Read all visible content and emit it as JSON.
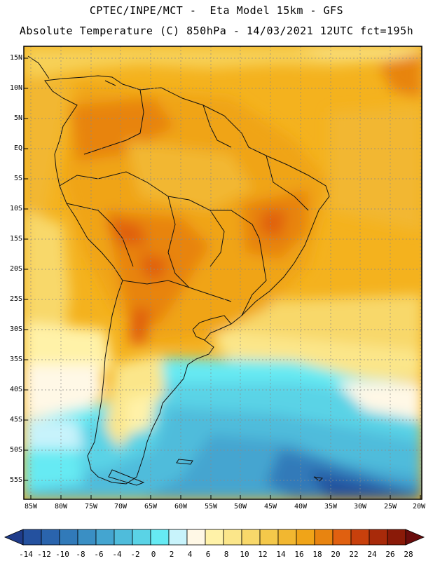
{
  "title": {
    "line1": "CPTEC/INPE/MCT -  Eta Model 15km - GFS",
    "line2": "Absolute Temperature (C) 850hPa - 14/03/2021 12UTC fct=195h"
  },
  "lat_labels": [
    "15N",
    "10N",
    "5N",
    "EQ",
    "5S",
    "10S",
    "15S",
    "20S",
    "25S",
    "30S",
    "35S",
    "40S",
    "45S",
    "50S",
    "55S"
  ],
  "lon_labels": [
    "85W",
    "80W",
    "75W",
    "70W",
    "65W",
    "60W",
    "55W",
    "50W",
    "45W",
    "40W",
    "35W",
    "30W",
    "25W",
    "20W"
  ],
  "colorbar": {
    "labels": [
      "-14",
      "-12",
      "-10",
      "-8",
      "-6",
      "-4",
      "-2",
      "0",
      "2",
      "4",
      "6",
      "8",
      "10",
      "12",
      "14",
      "16",
      "18",
      "20",
      "22",
      "24",
      "26",
      "28"
    ],
    "colors": [
      "#1f3c8a",
      "#24519f",
      "#2a64ad",
      "#317ab9",
      "#3a8fc4",
      "#44a5d0",
      "#4fbcdb",
      "#5ad3e6",
      "#66eaf3",
      "#c8f3fb",
      "#fff8e6",
      "#fff2a8",
      "#fbe68a",
      "#f8d86a",
      "#f4c84a",
      "#f2b730",
      "#f0a418",
      "#e88410",
      "#e06010",
      "#c8400c",
      "#a82a0a",
      "#8a1a08",
      "#6a0c0c"
    ]
  },
  "map": {
    "name": "South America 850hPa temperature field"
  }
}
